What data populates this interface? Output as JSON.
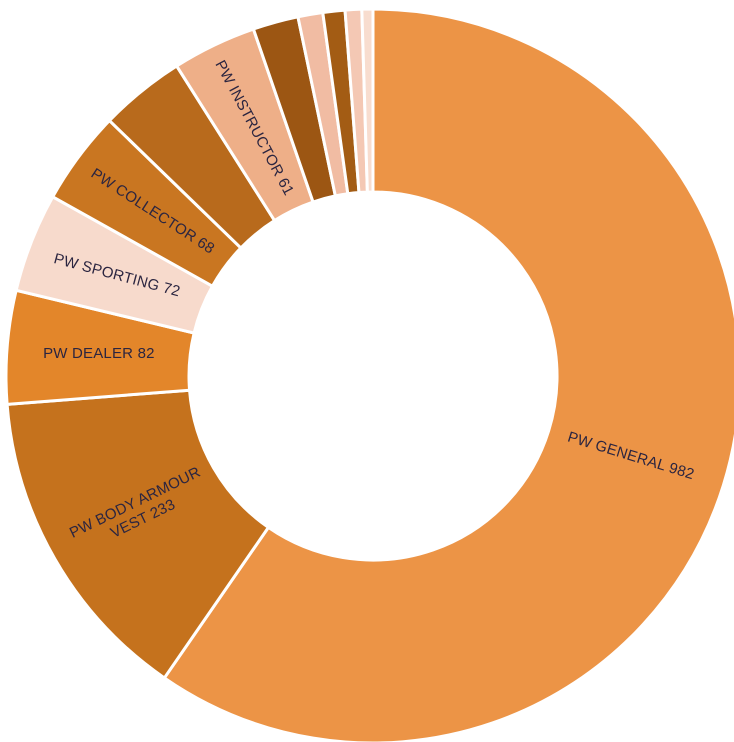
{
  "chart_data": {
    "type": "pie",
    "variant": "donut",
    "title": "",
    "legend": "none",
    "start_angle_deg": 0,
    "direction": "clockwise",
    "slices": [
      {
        "label": "PW GENERAL 982",
        "value": 982,
        "color": "#EC9446"
      },
      {
        "label": "PW BODY ARMOUR VEST 233",
        "value": 233,
        "color": "#C5721D"
      },
      {
        "label": "PW DEALER 82",
        "value": 82,
        "color": "#E3862A"
      },
      {
        "label": "PW SPORTING 72",
        "value": 72,
        "color": "#F7DACC"
      },
      {
        "label": "PW COLLECTOR 68",
        "value": 68,
        "color": "#C97621"
      },
      {
        "label": "",
        "value": 62,
        "color": "#B86A1C"
      },
      {
        "label": "PW INSTRUCTOR 61",
        "value": 61,
        "color": "#EEAF88"
      },
      {
        "label": "",
        "value": 33,
        "color": "#9C5613"
      },
      {
        "label": "",
        "value": 18,
        "color": "#F1BCA3"
      },
      {
        "label": "",
        "value": 16,
        "color": "#A35C14"
      },
      {
        "label": "",
        "value": 12,
        "color": "#F4C8B4"
      },
      {
        "label": "",
        "value": 8,
        "color": "#F8DDCF"
      }
    ]
  }
}
